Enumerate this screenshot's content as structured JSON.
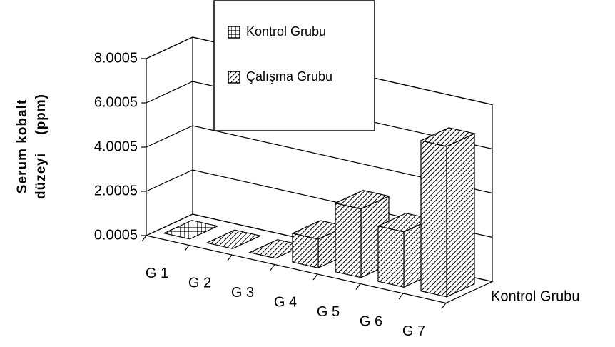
{
  "chart_data": {
    "type": "bar3d",
    "ylabel_lines": [
      "Serum kobalt",
      "düzeyi    (ppm)"
    ],
    "zlabel": "Kontrol Grubu",
    "categories": [
      "G 1",
      "G 2",
      "G 3",
      "G 4",
      "G 5",
      "G 6",
      "G 7"
    ],
    "series": [
      {
        "name": "Kontrol Grubu",
        "color": "#000000",
        "pattern": "crosshatch",
        "values": [
          0.0005,
          null,
          null,
          null,
          null,
          null,
          null
        ]
      },
      {
        "name": "Çalışma Grubu",
        "color": "#000000",
        "pattern": "diagonal",
        "values": [
          null,
          0.0005,
          0.0005,
          1.3,
          3.1,
          2.5,
          6.8
        ]
      }
    ],
    "ylim": [
      0.0005,
      8.0005
    ],
    "yticks": [
      0.0005,
      2.0005,
      4.0005,
      6.0005,
      8.0005
    ],
    "grid": true
  }
}
